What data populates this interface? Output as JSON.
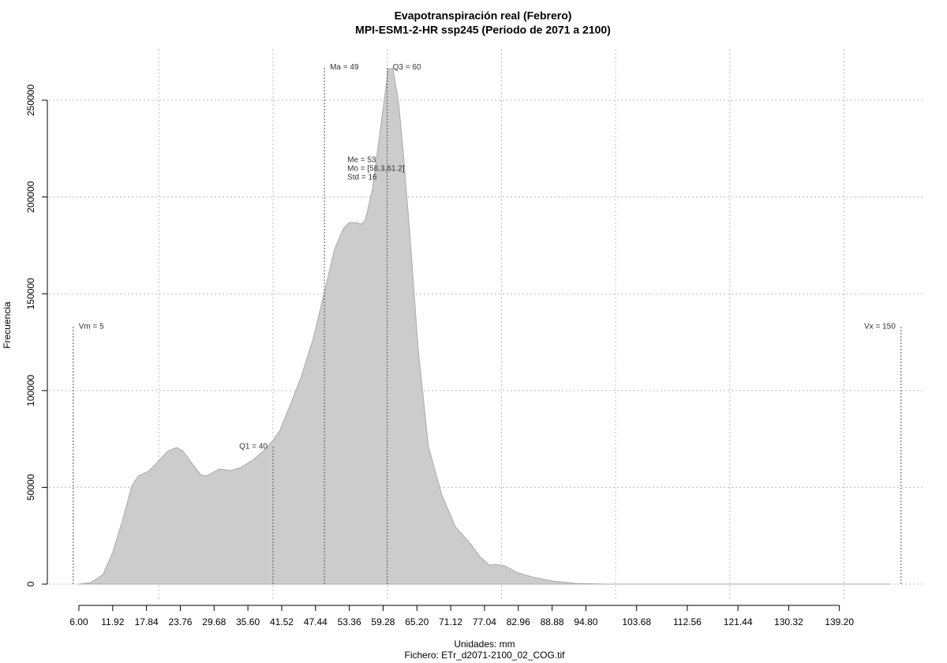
{
  "chart_data": {
    "type": "area",
    "title": "Evapotranspiración real (Febrero)",
    "subtitle": "MPI-ESM1-2-HR ssp245 (Periodo de 2071 a 2100)",
    "x_label": "Unidades: mm",
    "footer": "Fichero: ETr_d2071-2100_02_COG.tif",
    "y_label": "Frecuencia",
    "color": "#cccccc",
    "x": [
      6,
      8.1,
      10.2,
      11.9,
      13.6,
      15.3,
      16.4,
      18.2,
      19.8,
      21.5,
      23.1,
      24.2,
      25.8,
      27.4,
      28.4,
      30.6,
      32.5,
      34.2,
      36.4,
      38.5,
      40,
      41.2,
      42.9,
      44.8,
      47,
      49,
      50.8,
      52.3,
      53.3,
      54.6,
      55.5,
      56.2,
      57.4,
      58.6,
      60.2,
      61,
      62,
      62.9,
      64,
      65.4,
      67.2,
      69.6,
      72,
      74.5,
      76.2,
      77.9,
      79.2,
      80.6,
      82.7,
      85.4,
      88.9,
      93,
      98.6,
      148
    ],
    "values": [
      0,
      800,
      4900,
      16300,
      32600,
      51000,
      55900,
      58300,
      63200,
      68500,
      70600,
      68900,
      62400,
      56300,
      55900,
      59500,
      58700,
      60000,
      64000,
      69300,
      74200,
      79500,
      91800,
      106000,
      126400,
      150900,
      173300,
      183500,
      186800,
      186800,
      186000,
      188400,
      203900,
      230400,
      266300,
      266300,
      248800,
      220200,
      179400,
      122300,
      71400,
      45700,
      29400,
      21200,
      14300,
      9800,
      10200,
      9400,
      6100,
      3700,
      1600,
      400,
      0,
      0
    ],
    "xlim": [
      0.75,
      153.9
    ],
    "ylim": [
      -11400,
      276500
    ],
    "xticks": [
      {
        "value": 6,
        "label": "6.00"
      },
      11.92,
      17.84,
      23.76,
      29.68,
      {
        "value": 35.6,
        "label": "35.60"
      },
      41.52,
      47.44,
      53.36,
      59.28,
      {
        "value": 65.2,
        "label": "65.20"
      },
      71.12,
      77.04,
      82.96,
      88.88,
      {
        "value": 94.8,
        "label": "94.80"
      },
      103.68,
      112.56,
      121.44,
      130.32,
      {
        "value": 139.2,
        "label": "139.20"
      }
    ],
    "yticks": [
      0,
      50000,
      100000,
      150000,
      200000,
      250000
    ],
    "xgrid": [
      20,
      40,
      60,
      80,
      100,
      120,
      140
    ],
    "grid": true,
    "vlines": [
      {
        "label": "Vm = 5",
        "value": 5,
        "height": 133000,
        "anchor": "start"
      },
      {
        "label": "Q1 = 40",
        "value": 40,
        "height": 71000,
        "anchor": "end"
      },
      {
        "label": "Ma = 49",
        "value": 49,
        "height": 267000,
        "anchor": "start"
      },
      {
        "label": "Q3 = 60",
        "value": 60,
        "height": 267000,
        "anchor": "start"
      },
      {
        "label": "Vx = 150",
        "value": 150,
        "height": 133000,
        "anchor": "end"
      }
    ],
    "stats": [
      "Me = 53",
      "Mo = [58.3,61.2]",
      "Std = 16"
    ]
  }
}
